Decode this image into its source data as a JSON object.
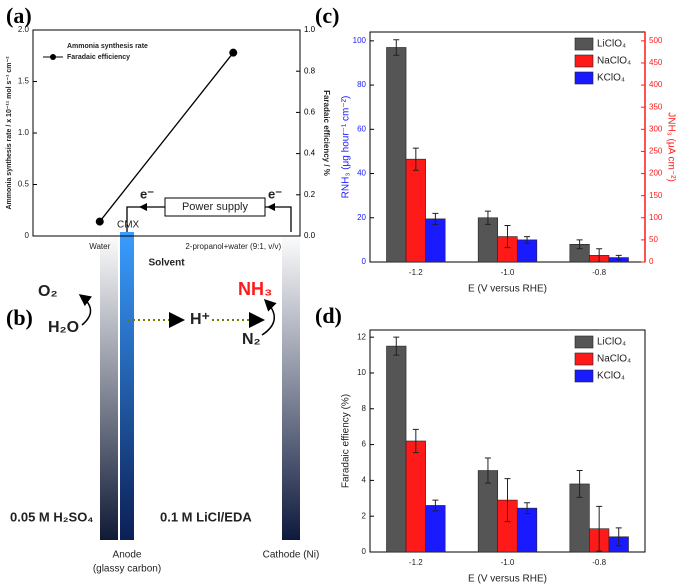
{
  "chart_data": [
    {
      "type": "line",
      "panel": "(a)",
      "xlabel": "Solvent",
      "ylabel": "Ammonia synthesis rate / x 10⁻¹¹ mol s⁻¹ cm⁻²",
      "y2label": "Faradaic efficiency / %",
      "categories": [
        "Water",
        "2-propanol+water (9:1, v/v)"
      ],
      "series": [
        {
          "name": "Ammonia synthesis rate",
          "color": "#000000",
          "values": [
            null,
            null
          ]
        },
        {
          "name": "Faradaic efficiency",
          "color": "#000000",
          "axis": "y2",
          "values": [
            0.07,
            0.89
          ]
        }
      ],
      "ylim": [
        0,
        2
      ],
      "yticks": [
        0,
        0.5,
        {
          "value": 1,
          "label": "1.0"
        },
        1.5,
        {
          "value": 2,
          "label": "2.0"
        }
      ],
      "y2lim": [
        0,
        1
      ],
      "y2ticks": [
        {
          "value": 0,
          "label": "0.0"
        },
        0.2,
        0.4,
        0.6,
        0.8,
        {
          "value": 1,
          "label": "1.0"
        }
      ],
      "legend": "upper-left"
    },
    {
      "type": "bar",
      "panel": "(c)",
      "xlabel": "E (V versus RHE)",
      "ylabel": "RNH₃ (μg hour⁻¹ cm⁻²)",
      "ylabel_color": "#1a1aff",
      "y2label": "JNH₃ (μA cm⁻²)",
      "y2_color": "#ff1a1a",
      "categories": [
        "-1.2",
        "-1.0",
        "-0.8"
      ],
      "series": [
        {
          "name": "LiClO₄",
          "color": "#555555",
          "values": [
            97,
            20,
            8
          ],
          "errors": [
            3.5,
            3,
            2
          ]
        },
        {
          "name": "NaClO₄",
          "color": "#ff1a1a",
          "values": [
            46.5,
            11.5,
            3
          ],
          "errors": [
            5,
            5,
            3
          ]
        },
        {
          "name": "KClO₄",
          "color": "#1a1aff",
          "values": [
            19.5,
            10,
            2
          ],
          "errors": [
            2.5,
            1.5,
            1
          ]
        }
      ],
      "ylim": [
        0,
        104
      ],
      "yticks": [
        0,
        20,
        40,
        60,
        80,
        100
      ],
      "y2lim": [
        0,
        520
      ],
      "y2ticks": [
        0,
        50,
        100,
        150,
        200,
        250,
        300,
        350,
        400,
        450,
        500
      ],
      "legend": "upper-right"
    },
    {
      "type": "bar",
      "panel": "(d)",
      "xlabel": "E (V versus RHE)",
      "ylabel": "Faradaic effiency (%)",
      "categories": [
        "-1.2",
        "-1.0",
        "-0.8"
      ],
      "series": [
        {
          "name": "LiClO₄",
          "color": "#555555",
          "values": [
            11.5,
            4.55,
            3.8
          ],
          "errors": [
            0.5,
            0.7,
            0.75
          ]
        },
        {
          "name": "NaClO₄",
          "color": "#ff1a1a",
          "values": [
            6.2,
            2.9,
            1.3
          ],
          "errors": [
            0.65,
            1.2,
            1.25
          ]
        },
        {
          "name": "KClO₄",
          "color": "#1a1aff",
          "values": [
            2.6,
            2.45,
            0.85
          ],
          "errors": [
            0.3,
            0.3,
            0.5
          ]
        }
      ],
      "ylim": [
        0,
        12.4
      ],
      "yticks": [
        0,
        2,
        4,
        6,
        8,
        10,
        12
      ],
      "legend": "upper-right"
    }
  ],
  "diagram": {
    "panel": "(b)",
    "power": "Power supply",
    "electron_left": "e⁻",
    "electron_right": "e⁻",
    "membrane": "CMX",
    "o2": "O₂",
    "h2o": "H₂O",
    "proton": "H⁺",
    "nh3": "NH₃",
    "n2": "N₂",
    "anolyte": "0.05 M H₂SO₄",
    "catholyte": "0.1 M LiCl/EDA",
    "anode": "Anode",
    "anode_material": "(glassy carbon)",
    "cathode": "Cathode (Ni)"
  }
}
